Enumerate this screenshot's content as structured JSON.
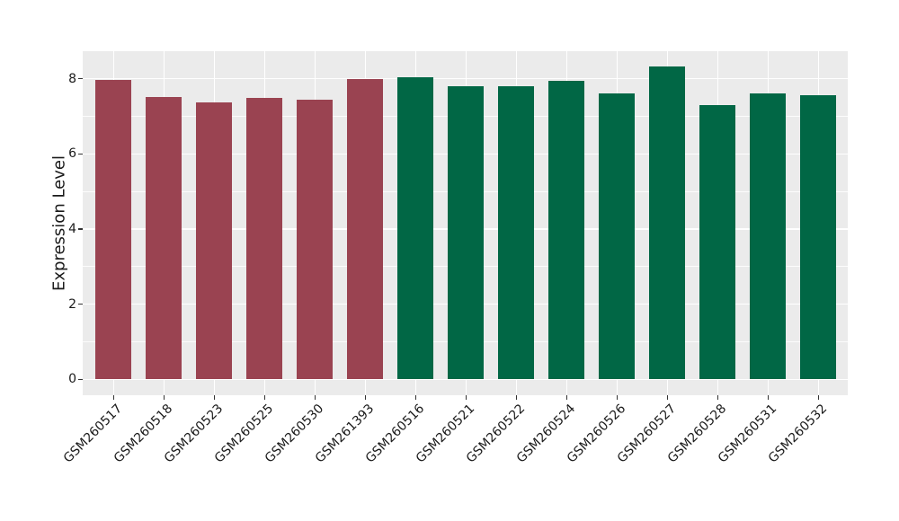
{
  "chart_data": {
    "type": "bar",
    "title": "",
    "xlabel": "",
    "ylabel": "Expression Level",
    "ylim": [
      -0.42,
      8.73
    ],
    "yticks": [
      0,
      2,
      4,
      6,
      8
    ],
    "ytick_labels": [
      "0",
      "2",
      "4",
      "6",
      "8"
    ],
    "yticks_minor": [
      1,
      3,
      5,
      7
    ],
    "grid": "on",
    "legend": "none",
    "plot_background": "#EBEBEB",
    "gridline_color": "#FFFFFF",
    "axis_text_color": "#1a1a1a",
    "categories": [
      "GSM260517",
      "GSM260518",
      "GSM260523",
      "GSM260525",
      "GSM260530",
      "GSM261393",
      "GSM260516",
      "GSM260521",
      "GSM260522",
      "GSM260524",
      "GSM260526",
      "GSM260527",
      "GSM260528",
      "GSM260531",
      "GSM260532"
    ],
    "values": [
      7.97,
      7.5,
      7.37,
      7.49,
      7.45,
      8.0,
      8.04,
      7.79,
      7.79,
      7.95,
      7.6,
      8.32,
      7.3,
      7.6,
      7.57
    ],
    "bar_colors": [
      "#9A4351",
      "#9A4351",
      "#9A4351",
      "#9A4351",
      "#9A4351",
      "#9A4351",
      "#016745",
      "#016745",
      "#016745",
      "#016745",
      "#016745",
      "#016745",
      "#016745",
      "#016745",
      "#016745"
    ],
    "group_colors": {
      "maroon_group": "#9A4351",
      "green_group": "#016745"
    }
  }
}
